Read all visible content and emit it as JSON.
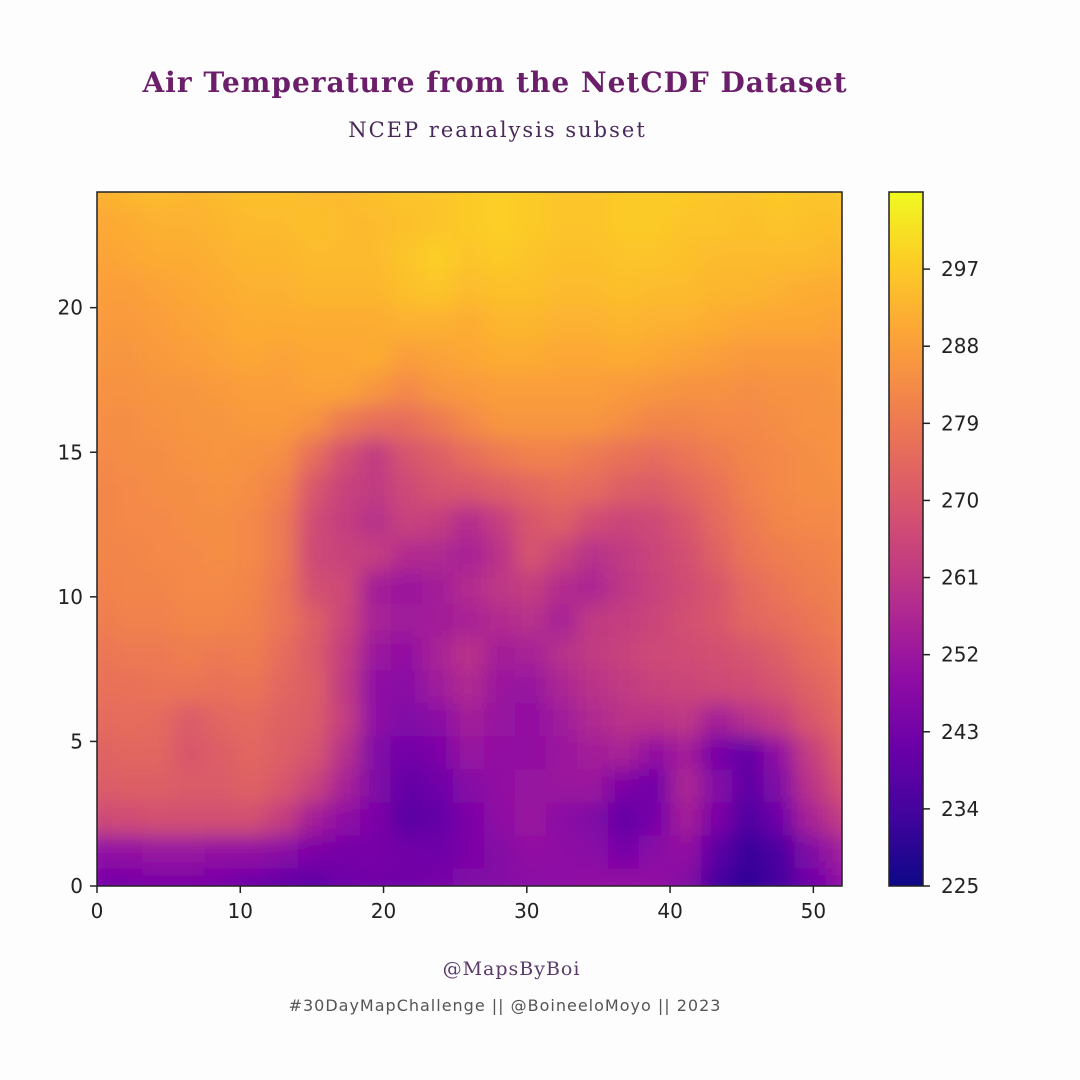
{
  "header": {
    "title": "Air Temperature from the NetCDF Dataset",
    "subtitle": "NCEP reanalysis subset"
  },
  "footer": {
    "credit": "@MapsByBoi",
    "hashtag_line": "#30DayMapChallenge || @BoineeloMoyo || 2023"
  },
  "chart_data": {
    "type": "heatmap",
    "colormap": "plasma",
    "xlim": [
      0,
      52
    ],
    "ylim": [
      0,
      24
    ],
    "x_ticks": [
      "0",
      "10",
      "20",
      "30",
      "40",
      "50"
    ],
    "y_ticks": [
      "0",
      "5",
      "10",
      "15",
      "20"
    ],
    "colorbar": {
      "range": [
        225,
        306
      ],
      "ticks": [
        "225",
        "234",
        "243",
        "252",
        "261",
        "270",
        "279",
        "288",
        "297"
      ]
    },
    "rows_top_to_bottom": [
      [
        292,
        293,
        294,
        293,
        294,
        295,
        295,
        294,
        294,
        295,
        296,
        296,
        297,
        298,
        297,
        296,
        296,
        297,
        297,
        297,
        296,
        296,
        297,
        296,
        296
      ],
      [
        290,
        291,
        292,
        292,
        293,
        294,
        294,
        295,
        294,
        294,
        295,
        296,
        297,
        298,
        297,
        296,
        296,
        297,
        297,
        296,
        296,
        295,
        296,
        295,
        295
      ],
      [
        289,
        290,
        291,
        291,
        292,
        293,
        293,
        294,
        294,
        294,
        296,
        298,
        296,
        297,
        296,
        295,
        295,
        296,
        296,
        295,
        294,
        294,
        294,
        294,
        293
      ],
      [
        288,
        288,
        289,
        290,
        291,
        292,
        292,
        293,
        293,
        293,
        295,
        296,
        294,
        295,
        295,
        294,
        294,
        295,
        294,
        294,
        293,
        293,
        292,
        291,
        291
      ],
      [
        287,
        287,
        288,
        289,
        290,
        291,
        291,
        291,
        291,
        291,
        292,
        292,
        291,
        293,
        293,
        292,
        292,
        293,
        292,
        292,
        291,
        290,
        290,
        290,
        289
      ],
      [
        286,
        286,
        287,
        288,
        289,
        290,
        289,
        290,
        290,
        291,
        288,
        289,
        290,
        291,
        291,
        290,
        290,
        291,
        290,
        289,
        288,
        287,
        287,
        287,
        287
      ],
      [
        285,
        285,
        286,
        286,
        287,
        288,
        288,
        289,
        289,
        286,
        283,
        286,
        287,
        288,
        288,
        288,
        288,
        287,
        286,
        285,
        285,
        284,
        285,
        285,
        286
      ],
      [
        284,
        284,
        285,
        286,
        286,
        287,
        287,
        285,
        279,
        276,
        276,
        279,
        283,
        286,
        286,
        286,
        286,
        284,
        282,
        282,
        283,
        283,
        284,
        285,
        285
      ],
      [
        283,
        284,
        284,
        285,
        286,
        285,
        284,
        276,
        268,
        262,
        269,
        272,
        276,
        279,
        281,
        281,
        279,
        277,
        276,
        278,
        280,
        282,
        283,
        284,
        285
      ],
      [
        282,
        283,
        284,
        284,
        285,
        284,
        281,
        270,
        264,
        262,
        266,
        269,
        270,
        272,
        274,
        276,
        275,
        272,
        271,
        274,
        277,
        281,
        283,
        284,
        284
      ],
      [
        282,
        283,
        283,
        284,
        284,
        283,
        279,
        267,
        263,
        259,
        264,
        263,
        258,
        263,
        270,
        272,
        267,
        265,
        266,
        270,
        275,
        279,
        282,
        283,
        283
      ],
      [
        282,
        282,
        283,
        283,
        284,
        283,
        279,
        266,
        264,
        263,
        258,
        257,
        255,
        260,
        269,
        264,
        259,
        262,
        265,
        268,
        273,
        278,
        280,
        281,
        282
      ],
      [
        281,
        282,
        282,
        283,
        283,
        282,
        278,
        268,
        266,
        254,
        252,
        254,
        258,
        261,
        263,
        258,
        256,
        261,
        264,
        267,
        270,
        275,
        278,
        280,
        281
      ],
      [
        280,
        281,
        281,
        282,
        282,
        281,
        278,
        272,
        265,
        255,
        253,
        254,
        255,
        258,
        259,
        255,
        262,
        263,
        265,
        268,
        270,
        274,
        276,
        278,
        280
      ],
      [
        278,
        279,
        279,
        280,
        279,
        280,
        276,
        271,
        263,
        252,
        250,
        255,
        260,
        254,
        255,
        259,
        262,
        264,
        266,
        267,
        268,
        269,
        272,
        276,
        278
      ],
      [
        277,
        277,
        278,
        278,
        277,
        278,
        274,
        272,
        262,
        249,
        248,
        253,
        257,
        252,
        251,
        256,
        260,
        262,
        264,
        265,
        266,
        267,
        269,
        273,
        276
      ],
      [
        275,
        276,
        275,
        271,
        274,
        275,
        273,
        271,
        263,
        249,
        246,
        248,
        254,
        251,
        250,
        253,
        257,
        260,
        260,
        261,
        254,
        259,
        263,
        270,
        274
      ],
      [
        273,
        274,
        274,
        270,
        272,
        274,
        272,
        269,
        259,
        246,
        243,
        245,
        251,
        250,
        250,
        252,
        254,
        255,
        250,
        254,
        244,
        240,
        250,
        263,
        271
      ],
      [
        271,
        272,
        272,
        271,
        271,
        273,
        270,
        264,
        255,
        246,
        240,
        242,
        247,
        250,
        251,
        252,
        252,
        245,
        243,
        256,
        247,
        239,
        246,
        260,
        268
      ],
      [
        266,
        267,
        268,
        268,
        268,
        268,
        263,
        254,
        249,
        245,
        238,
        240,
        245,
        249,
        252,
        248,
        246,
        240,
        244,
        254,
        245,
        236,
        242,
        255,
        262
      ],
      [
        249,
        250,
        251,
        251,
        250,
        250,
        248,
        245,
        244,
        244,
        243,
        242,
        245,
        247,
        250,
        249,
        248,
        244,
        248,
        250,
        238,
        232,
        235,
        246,
        253
      ],
      [
        244,
        244,
        245,
        245,
        244,
        242,
        240,
        239,
        242,
        243,
        243,
        244,
        246,
        247,
        248,
        249,
        250,
        250,
        250,
        247,
        234,
        230,
        234,
        242,
        249
      ]
    ]
  }
}
